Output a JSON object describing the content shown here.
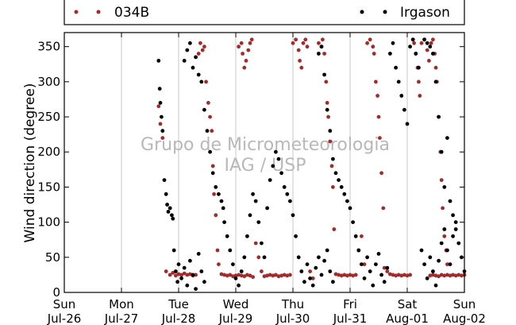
{
  "chart_data": {
    "type": "scatter",
    "ylabel": "Wind direction (degree)",
    "ylim": [
      0,
      370
    ],
    "yticks": [
      0,
      50,
      100,
      150,
      200,
      250,
      300,
      350
    ],
    "x_range": [
      "2012-07-26",
      "2012-08-02"
    ],
    "x_ticks": [
      {
        "day": 0,
        "weekday": "Sun",
        "date": "Jul-26"
      },
      {
        "day": 1,
        "weekday": "Mon",
        "date": "Jul-27"
      },
      {
        "day": 2,
        "weekday": "Tue",
        "date": "Jul-28"
      },
      {
        "day": 3,
        "weekday": "Wed",
        "date": "Jul-29"
      },
      {
        "day": 4,
        "weekday": "Thu",
        "date": "Jul-30"
      },
      {
        "day": 5,
        "weekday": "Fri",
        "date": "Jul-31"
      },
      {
        "day": 6,
        "weekday": "Sat",
        "date": "Aug-01"
      },
      {
        "day": 7,
        "weekday": "Sun",
        "date": "Aug-02"
      }
    ],
    "grid": "vertical",
    "legend_position": "top",
    "watermark": [
      "Grupo de Micrometeorologia",
      "IAG / USP"
    ],
    "series": [
      {
        "name": "034B",
        "color": "#a52a2a",
        "points": [
          [
            1.65,
            265
          ],
          [
            1.68,
            240
          ],
          [
            1.72,
            220
          ],
          [
            1.78,
            30
          ],
          [
            1.85,
            25
          ],
          [
            1.9,
            28
          ],
          [
            1.95,
            24
          ],
          [
            2.0,
            26
          ],
          [
            2.05,
            25
          ],
          [
            2.1,
            27
          ],
          [
            2.15,
            25
          ],
          [
            2.2,
            26
          ],
          [
            2.25,
            24
          ],
          [
            2.3,
            25
          ],
          [
            2.35,
            340
          ],
          [
            2.38,
            355
          ],
          [
            2.42,
            345
          ],
          [
            2.45,
            350
          ],
          [
            2.48,
            300
          ],
          [
            2.52,
            270
          ],
          [
            2.55,
            250
          ],
          [
            2.58,
            230
          ],
          [
            2.6,
            180
          ],
          [
            2.62,
            140
          ],
          [
            2.65,
            110
          ],
          [
            2.68,
            60
          ],
          [
            2.7,
            40
          ],
          [
            2.75,
            26
          ],
          [
            2.8,
            25
          ],
          [
            2.85,
            24
          ],
          [
            2.9,
            25
          ],
          [
            2.95,
            23
          ],
          [
            3.0,
            24
          ],
          [
            3.05,
            25
          ],
          [
            3.1,
            24
          ],
          [
            3.15,
            23
          ],
          [
            3.2,
            25
          ],
          [
            3.25,
            24
          ],
          [
            3.3,
            22
          ],
          [
            3.05,
            350
          ],
          [
            3.1,
            355
          ],
          [
            3.12,
            340
          ],
          [
            3.15,
            320
          ],
          [
            3.18,
            330
          ],
          [
            3.22,
            345
          ],
          [
            3.25,
            355
          ],
          [
            3.28,
            360
          ],
          [
            3.35,
            70
          ],
          [
            3.4,
            50
          ],
          [
            3.45,
            30
          ],
          [
            3.5,
            23
          ],
          [
            3.55,
            24
          ],
          [
            3.6,
            25
          ],
          [
            3.65,
            24
          ],
          [
            3.7,
            25
          ],
          [
            3.75,
            23
          ],
          [
            3.8,
            24
          ],
          [
            3.85,
            25
          ],
          [
            3.9,
            24
          ],
          [
            3.95,
            25
          ],
          [
            4.0,
            355
          ],
          [
            4.05,
            360
          ],
          [
            4.1,
            345
          ],
          [
            4.12,
            330
          ],
          [
            4.15,
            320
          ],
          [
            4.18,
            355
          ],
          [
            4.22,
            360
          ],
          [
            4.25,
            350
          ],
          [
            4.3,
            30
          ],
          [
            4.35,
            20
          ],
          [
            4.45,
            355
          ],
          [
            4.5,
            350
          ],
          [
            4.52,
            360
          ],
          [
            4.55,
            340
          ],
          [
            4.58,
            300
          ],
          [
            4.6,
            270
          ],
          [
            4.62,
            250
          ],
          [
            4.65,
            215
          ],
          [
            4.68,
            180
          ],
          [
            4.7,
            150
          ],
          [
            4.72,
            90
          ],
          [
            4.75,
            26
          ],
          [
            4.8,
            25
          ],
          [
            4.85,
            24
          ],
          [
            4.9,
            25
          ],
          [
            4.95,
            24
          ],
          [
            5.0,
            25
          ],
          [
            5.05,
            24
          ],
          [
            5.1,
            25
          ],
          [
            5.15,
            60
          ],
          [
            5.2,
            80
          ],
          [
            5.25,
            40
          ],
          [
            5.3,
            355
          ],
          [
            5.35,
            360
          ],
          [
            5.4,
            350
          ],
          [
            5.42,
            340
          ],
          [
            5.45,
            300
          ],
          [
            5.48,
            280
          ],
          [
            5.5,
            250
          ],
          [
            5.52,
            220
          ],
          [
            5.55,
            170
          ],
          [
            5.58,
            120
          ],
          [
            5.6,
            35
          ],
          [
            5.65,
            30
          ],
          [
            5.7,
            26
          ],
          [
            5.75,
            25
          ],
          [
            5.8,
            24
          ],
          [
            5.85,
            25
          ],
          [
            5.9,
            24
          ],
          [
            5.95,
            25
          ],
          [
            6.0,
            24
          ],
          [
            6.05,
            25
          ],
          [
            6.1,
            360
          ],
          [
            6.12,
            355
          ],
          [
            6.15,
            340
          ],
          [
            6.18,
            320
          ],
          [
            6.2,
            300
          ],
          [
            6.22,
            280
          ],
          [
            6.25,
            355
          ],
          [
            6.3,
            360
          ],
          [
            6.35,
            345
          ],
          [
            6.38,
            330
          ],
          [
            6.4,
            24
          ],
          [
            6.45,
            25
          ],
          [
            6.5,
            24
          ],
          [
            6.55,
            23
          ],
          [
            6.6,
            25
          ],
          [
            6.65,
            24
          ],
          [
            6.7,
            25
          ],
          [
            6.75,
            24
          ],
          [
            6.8,
            25
          ],
          [
            6.85,
            24
          ],
          [
            6.9,
            25
          ],
          [
            6.95,
            24
          ],
          [
            7.0,
            25
          ],
          [
            6.42,
            355
          ],
          [
            6.45,
            360
          ],
          [
            6.48,
            340
          ],
          [
            6.5,
            320
          ],
          [
            6.52,
            300
          ],
          [
            6.55,
            250
          ],
          [
            6.58,
            200
          ],
          [
            6.6,
            160
          ],
          [
            6.62,
            120
          ],
          [
            6.65,
            80
          ],
          [
            6.68,
            60
          ],
          [
            6.7,
            40
          ]
        ]
      },
      {
        "name": "Irgason",
        "color": "#000000",
        "points": [
          [
            1.65,
            330
          ],
          [
            1.67,
            290
          ],
          [
            1.68,
            270
          ],
          [
            1.7,
            250
          ],
          [
            1.72,
            230
          ],
          [
            1.75,
            160
          ],
          [
            1.78,
            140
          ],
          [
            1.8,
            125
          ],
          [
            1.82,
            115
          ],
          [
            1.85,
            120
          ],
          [
            1.88,
            110
          ],
          [
            1.9,
            105
          ],
          [
            1.92,
            60
          ],
          [
            1.95,
            30
          ],
          [
            1.98,
            15
          ],
          [
            2.0,
            40
          ],
          [
            2.05,
            20
          ],
          [
            2.1,
            35
          ],
          [
            2.15,
            10
          ],
          [
            2.2,
            45
          ],
          [
            2.25,
            25
          ],
          [
            2.3,
            5
          ],
          [
            2.35,
            55
          ],
          [
            2.4,
            30
          ],
          [
            2.45,
            15
          ],
          [
            2.1,
            330
          ],
          [
            2.15,
            345
          ],
          [
            2.2,
            355
          ],
          [
            2.25,
            320
          ],
          [
            2.3,
            335
          ],
          [
            2.35,
            310
          ],
          [
            2.4,
            300
          ],
          [
            2.45,
            260
          ],
          [
            2.5,
            230
          ],
          [
            2.55,
            200
          ],
          [
            2.6,
            170
          ],
          [
            2.65,
            150
          ],
          [
            2.7,
            140
          ],
          [
            2.75,
            130
          ],
          [
            2.78,
            120
          ],
          [
            2.8,
            100
          ],
          [
            2.85,
            80
          ],
          [
            2.9,
            60
          ],
          [
            2.95,
            40
          ],
          [
            3.0,
            20
          ],
          [
            3.05,
            10
          ],
          [
            3.1,
            30
          ],
          [
            3.15,
            50
          ],
          [
            3.2,
            80
          ],
          [
            3.25,
            110
          ],
          [
            3.3,
            140
          ],
          [
            3.35,
            130
          ],
          [
            3.4,
            100
          ],
          [
            3.45,
            70
          ],
          [
            3.5,
            50
          ],
          [
            3.55,
            120
          ],
          [
            3.6,
            160
          ],
          [
            3.65,
            180
          ],
          [
            3.7,
            200
          ],
          [
            3.75,
            190
          ],
          [
            3.8,
            170
          ],
          [
            3.85,
            150
          ],
          [
            3.9,
            140
          ],
          [
            3.95,
            130
          ],
          [
            4.0,
            110
          ],
          [
            4.05,
            80
          ],
          [
            4.1,
            50
          ],
          [
            4.15,
            30
          ],
          [
            4.2,
            15
          ],
          [
            4.25,
            40
          ],
          [
            4.3,
            20
          ],
          [
            4.35,
            10
          ],
          [
            4.4,
            35
          ],
          [
            4.45,
            50
          ],
          [
            4.5,
            25
          ],
          [
            4.55,
            45
          ],
          [
            4.6,
            60
          ],
          [
            4.65,
            30
          ],
          [
            4.7,
            15
          ],
          [
            4.45,
            340
          ],
          [
            4.5,
            350
          ],
          [
            4.55,
            310
          ],
          [
            4.6,
            260
          ],
          [
            4.65,
            230
          ],
          [
            4.7,
            190
          ],
          [
            4.75,
            170
          ],
          [
            4.8,
            160
          ],
          [
            4.85,
            150
          ],
          [
            4.9,
            140
          ],
          [
            4.95,
            130
          ],
          [
            5.0,
            120
          ],
          [
            5.05,
            100
          ],
          [
            5.1,
            80
          ],
          [
            5.15,
            60
          ],
          [
            5.2,
            40
          ],
          [
            5.25,
            20
          ],
          [
            5.3,
            50
          ],
          [
            5.35,
            30
          ],
          [
            5.4,
            10
          ],
          [
            5.45,
            40
          ],
          [
            5.5,
            55
          ],
          [
            5.55,
            25
          ],
          [
            5.6,
            15
          ],
          [
            5.65,
            35
          ],
          [
            5.7,
            340
          ],
          [
            5.75,
            355
          ],
          [
            5.8,
            320
          ],
          [
            5.85,
            300
          ],
          [
            5.9,
            280
          ],
          [
            5.95,
            260
          ],
          [
            6.0,
            240
          ],
          [
            6.05,
            350
          ],
          [
            6.1,
            360
          ],
          [
            6.15,
            340
          ],
          [
            6.2,
            320
          ],
          [
            6.25,
            60
          ],
          [
            6.3,
            40
          ],
          [
            6.35,
            20
          ],
          [
            6.4,
            50
          ],
          [
            6.45,
            30
          ],
          [
            6.5,
            10
          ],
          [
            6.55,
            45
          ],
          [
            6.6,
            70
          ],
          [
            6.65,
            90
          ],
          [
            6.7,
            60
          ],
          [
            6.75,
            40
          ],
          [
            6.8,
            80
          ],
          [
            6.85,
            100
          ],
          [
            6.9,
            70
          ],
          [
            6.95,
            50
          ],
          [
            7.0,
            30
          ],
          [
            6.3,
            360
          ],
          [
            6.35,
            355
          ],
          [
            6.4,
            350
          ],
          [
            6.45,
            340
          ],
          [
            6.5,
            300
          ],
          [
            6.55,
            250
          ],
          [
            6.6,
            200
          ],
          [
            6.65,
            150
          ],
          [
            6.7,
            220
          ],
          [
            6.75,
            130
          ],
          [
            6.8,
            110
          ],
          [
            6.85,
            90
          ]
        ]
      }
    ]
  }
}
